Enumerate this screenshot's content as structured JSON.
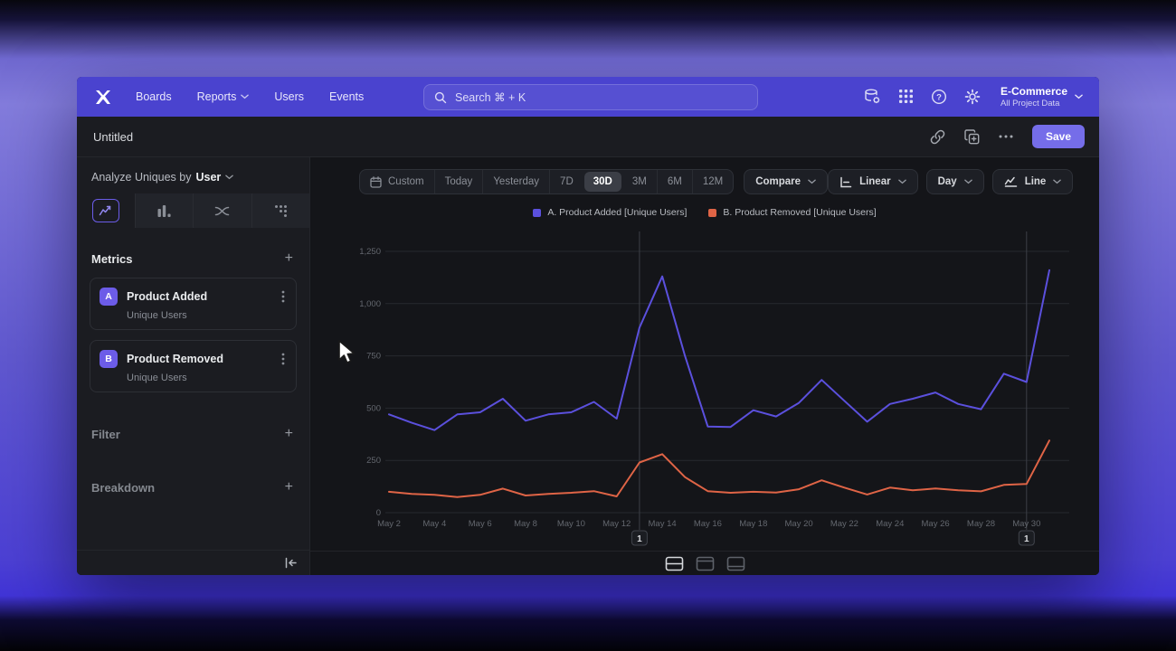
{
  "nav": {
    "items": [
      {
        "label": "Boards",
        "has_chevron": false
      },
      {
        "label": "Reports",
        "has_chevron": true
      },
      {
        "label": "Users",
        "has_chevron": false
      },
      {
        "label": "Events",
        "has_chevron": false
      }
    ],
    "search": {
      "placeholder": "Search  ⌘ + K"
    },
    "project": {
      "name": "E-Commerce",
      "subtitle": "All Project Data"
    }
  },
  "header": {
    "title": "Untitled",
    "save_label": "Save"
  },
  "sidebar": {
    "analyze_label": "Analyze Uniques by",
    "analyze_value": "User",
    "metrics": {
      "title": "Metrics",
      "items": [
        {
          "badge": "A",
          "name": "Product Added",
          "sub": "Unique Users"
        },
        {
          "badge": "B",
          "name": "Product Removed",
          "sub": "Unique Users"
        }
      ]
    },
    "filter_label": "Filter",
    "breakdown_label": "Breakdown"
  },
  "toolbar": {
    "ranges": [
      "Custom",
      "Today",
      "Yesterday",
      "7D",
      "30D",
      "3M",
      "6M",
      "12M"
    ],
    "active_range": "30D",
    "compare_label": "Compare",
    "scale_label": "Linear",
    "granularity_label": "Day",
    "chart_type_label": "Line"
  },
  "chart_data": {
    "type": "line",
    "title": "",
    "xlabel": "",
    "ylabel": "",
    "ylim": [
      0,
      1250
    ],
    "yticks": [
      0,
      250,
      500,
      750,
      1000,
      1250
    ],
    "xtick_every": 2,
    "grid": "horizontal",
    "legend_position": "top-center",
    "categories": [
      "May 2",
      "May 3",
      "May 4",
      "May 5",
      "May 6",
      "May 7",
      "May 8",
      "May 9",
      "May 10",
      "May 11",
      "May 12",
      "May 13",
      "May 14",
      "May 15",
      "May 16",
      "May 17",
      "May 18",
      "May 19",
      "May 20",
      "May 21",
      "May 22",
      "May 23",
      "May 24",
      "May 25",
      "May 26",
      "May 27",
      "May 28",
      "May 29",
      "May 30",
      "May 31"
    ],
    "series": [
      {
        "name": "Product Added",
        "legend": "A. Product Added [Unique Users]",
        "color": "#5b50dd",
        "values": [
          470,
          430,
          395,
          470,
          480,
          545,
          440,
          470,
          480,
          530,
          450,
          885,
          1130,
          750,
          412,
          410,
          490,
          460,
          525,
          635,
          535,
          435,
          520,
          545,
          575,
          520,
          495,
          665,
          625,
          1160
        ]
      },
      {
        "name": "Product Removed",
        "legend": "B. Product Removed [Unique Users]",
        "color": "#df6446",
        "values": [
          100,
          90,
          85,
          75,
          85,
          115,
          82,
          90,
          95,
          103,
          78,
          240,
          280,
          170,
          103,
          95,
          100,
          96,
          112,
          155,
          120,
          87,
          120,
          107,
          116,
          107,
          102,
          133,
          137,
          345
        ]
      }
    ],
    "annotations": [
      {
        "index": 11,
        "date": "May 13",
        "label": "1"
      },
      {
        "index": 28,
        "date": "May 30",
        "label": "1"
      }
    ]
  },
  "colors": {
    "nav_bg": "#4a43cf",
    "save_button": "#756de9",
    "accent": "#6c5ce8",
    "series_added": "#5b50dd",
    "series_removed": "#df6446",
    "grid_line": "#26292f",
    "annotation_line": "#3c3f47",
    "window_bg": "#141519",
    "panel_bg": "#1b1c21"
  }
}
